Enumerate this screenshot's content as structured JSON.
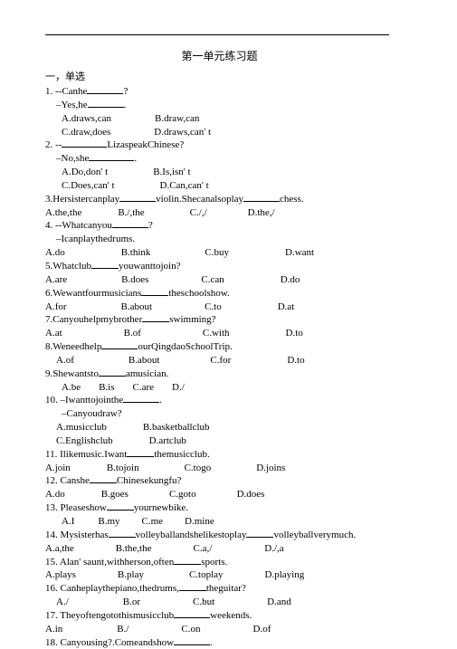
{
  "title": "第一单元练习题",
  "section": "一，单选",
  "questions": [
    {
      "lines": [
        "1. --Canhe<u40>?",
        "<i1>–Yes,he<u40>."
      ],
      "opts": [
        [
          "<i2>A.draws,can",
          "B.draw,can"
        ],
        [
          "<i2>C.draw,does",
          "D.draws,can'  t"
        ]
      ],
      "gaps": [
        48,
        40
      ]
    },
    {
      "lines": [
        "2. --<u50>LizaspeakChinese?",
        "<i1>–No,she<u50>."
      ],
      "opts": [
        [
          "<i2>A.Do,don'  t",
          "B.Is,isn'  t"
        ],
        [
          "<i2>C.Does,can'  t",
          "D.Can,can'  t"
        ]
      ],
      "gaps": [
        50,
        28
      ]
    },
    {
      "lines": [
        "3.Hersistercanplay<u40>violin.Shecanalsoplay<u40>chess."
      ],
      "opts": [
        [
          "A.the,the",
          "B./,the",
          "C./,/",
          "D.the,/"
        ]
      ],
      "gaps": [
        40,
        50,
        45
      ]
    },
    {
      "lines": [
        "4. --Whatcanyou<u40>?",
        "<i1>–Icanplaythedrums."
      ],
      "opts": [
        [
          "A.do",
          "B.think",
          "C.buy",
          "D.want"
        ]
      ],
      "gaps": [
        62,
        60,
        62
      ]
    },
    {
      "lines": [
        "5.Whatclub<u30>youwanttojoin?"
      ],
      "opts": [
        [
          "A.are",
          "B.does",
          "C.can",
          "D.do"
        ]
      ],
      "gaps": [
        60,
        58,
        62
      ]
    },
    {
      "lines": [
        "6.Wewantfourmusicians<u30>theschoolshow."
      ],
      "opts": [
        [
          "A.for",
          "B.about",
          "C.to",
          "D.at"
        ]
      ],
      "gaps": [
        60,
        58,
        62
      ]
    },
    {
      "lines": [
        "7.Canyouhelpmybrother<u30>swimming?"
      ],
      "opts": [
        [
          "A.at",
          "B.of",
          "C.with",
          "D.to"
        ]
      ],
      "gaps": [
        68,
        68,
        62
      ]
    },
    {
      "lines": [
        "8.Weneedhelp<u40>ourQingdaoSchoolTrip."
      ],
      "opts": [
        [
          "<i1>A.of",
          "B.about",
          "C.for",
          "D.to"
        ]
      ],
      "gaps": [
        60,
        56,
        62
      ]
    },
    {
      "lines": [
        "9.Shewantsto<u30>amusician."
      ],
      "opts": [
        [
          "<i2>A.be",
          "B.is",
          "C.are",
          "D./"
        ]
      ],
      "gaps": [
        20,
        20,
        20
      ]
    },
    {
      "lines": [
        "10. –Iwanttojointhe<u40>.",
        "<i2>–Canyoudraw?"
      ],
      "opts": [
        [
          "<i1>A.musicclub",
          "B.basketballclub"
        ],
        [
          "<i1>C.Englishclub",
          "D.artclub"
        ]
      ],
      "gaps": [
        40,
        40
      ]
    },
    {
      "lines": [
        "11. Ilikemusic.Iwant<u30>themusicclub."
      ],
      "opts": [
        [
          "A.join",
          "B.tojoin",
          "C.togo",
          "D.joins"
        ]
      ],
      "gaps": [
        40,
        50,
        50
      ]
    },
    {
      "lines": [
        "12. Canshe<u30>Chinesekungfu?"
      ],
      "opts": [
        [
          "A.do",
          "B.goes",
          "C.goto",
          "D.does"
        ]
      ],
      "gaps": [
        40,
        45,
        45
      ]
    },
    {
      "lines": [
        "13. Pleaseshow<u30>yournewbike."
      ],
      "opts": [
        [
          "<i2>A.I",
          "B.my",
          "C.me",
          "D.mine"
        ]
      ],
      "gaps": [
        26,
        24,
        24
      ]
    },
    {
      "lines": [
        "14. Mysisterhas<u30>volleyballandshelikestoplay<u30>volleyballverymuch."
      ],
      "opts": [
        [
          "A.a,the",
          "B.the,the",
          "C.a,/",
          "D./,a"
        ]
      ],
      "gaps": [
        46,
        46,
        58
      ]
    },
    {
      "lines": [
        "15. Alan'  saunt,withherson,often<u30>sports."
      ],
      "opts": [
        [
          "A.plays",
          "B.play",
          "C.toplay",
          "D.playing"
        ]
      ],
      "gaps": [
        46,
        50,
        46
      ]
    },
    {
      "lines": [
        "16. Canheplaythepiano,thedrums,<u30>theguitar?"
      ],
      "opts": [
        [
          "<i1>A./",
          "B.or",
          "C.but",
          "D.and"
        ]
      ],
      "gaps": [
        60,
        58,
        58
      ]
    },
    {
      "lines": [
        "17. Theyoftengotothismusicclub<u40>weekends."
      ],
      "opts": [
        [
          "A.in",
          "B./",
          "C.on",
          "D.of"
        ]
      ],
      "gaps": [
        60,
        58,
        58
      ]
    },
    {
      "lines": [
        "18. Canyousing?.Comeandshow<u40>."
      ],
      "opts": []
    }
  ]
}
